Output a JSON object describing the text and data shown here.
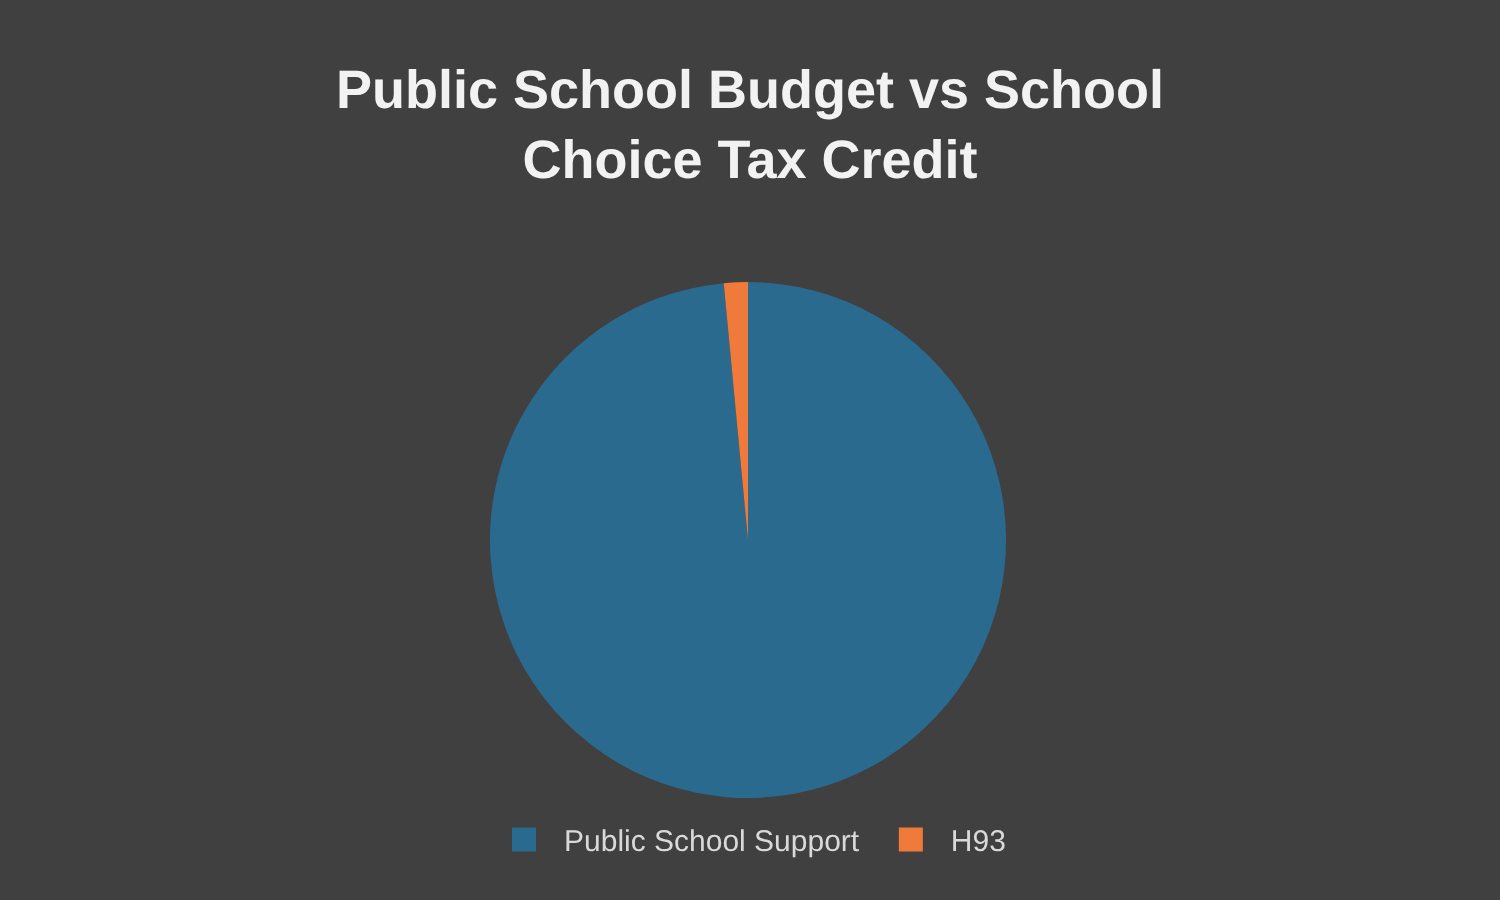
{
  "chart_data": {
    "type": "pie",
    "title": "Public School Budget vs School Choice Tax Credit",
    "categories": [
      "Public School Support",
      "H93"
    ],
    "values": [
      98.5,
      1.5
    ],
    "colors": [
      "#2b6a8f",
      "#f07a3a"
    ],
    "legend": "bottom"
  }
}
